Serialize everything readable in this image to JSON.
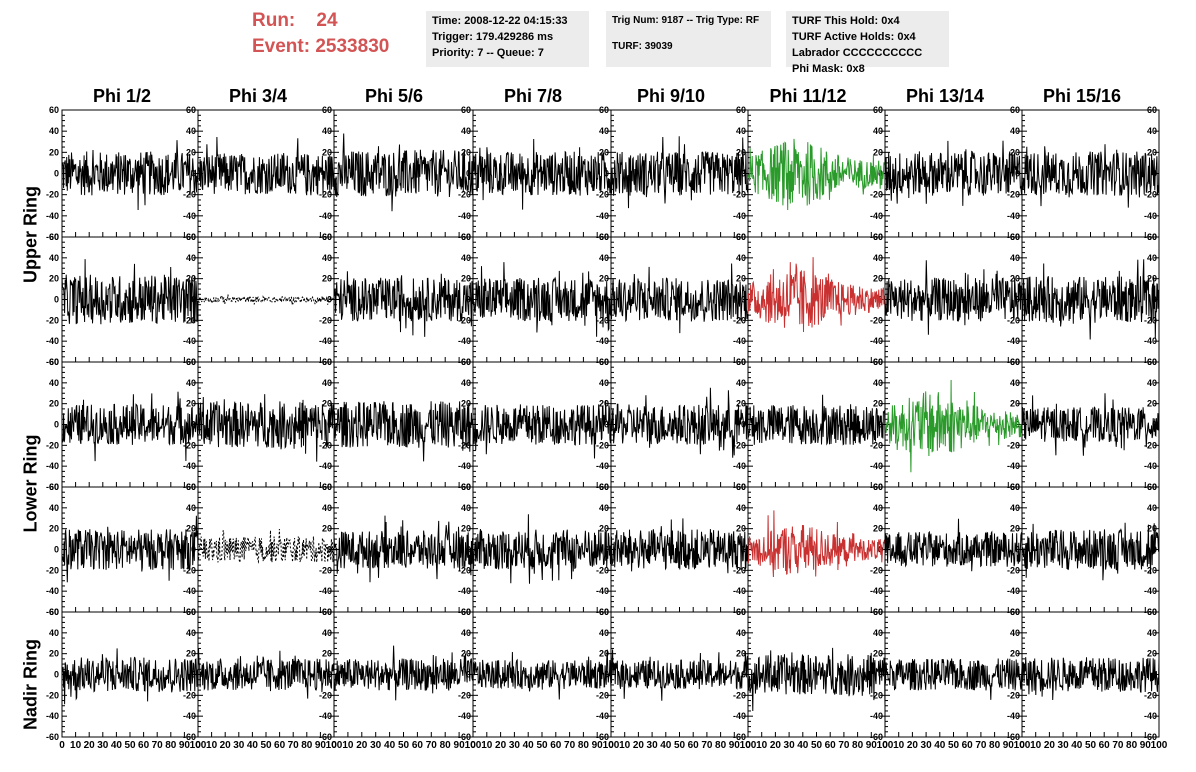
{
  "run": {
    "run_label": "Run:",
    "run_value": "24",
    "event_label": "Event:",
    "event_value": "2533830",
    "color": "#d35454"
  },
  "info_box_1": {
    "line1": "Time: 2008-12-22 04:15:33",
    "line2": "Trigger: 179.429286 ms",
    "line3": "Priority: 7 -- Queue: 7"
  },
  "info_box_2": {
    "line1": "Trig Num: 9187 -- Trig Type: RF",
    "line2": "TURF: 39039"
  },
  "info_box_3": {
    "line1": "TURF This Hold: 0x4",
    "line2": "TURF Active Holds: 0x4",
    "line3": "Labrador CCCCCCCCCC",
    "line4": "Phi Mask: 0x8"
  },
  "chart_data": {
    "type": "line",
    "columns": [
      "Phi 1/2",
      "Phi 3/4",
      "Phi 5/6",
      "Phi 7/8",
      "Phi 9/10",
      "Phi 11/12",
      "Phi 13/14",
      "Phi 15/16"
    ],
    "row_labels": [
      "Upper Ring",
      "Lower Ring",
      "Nadir Ring"
    ],
    "rings_rows": [
      [
        0,
        1
      ],
      [
        2,
        3
      ],
      [
        4
      ]
    ],
    "xlim": [
      0,
      100
    ],
    "ylim": [
      -60,
      60
    ],
    "x_ticks": [
      "0",
      "10",
      "20",
      "30",
      "40",
      "50",
      "60",
      "70",
      "80",
      "90",
      "100"
    ],
    "y_ticks": [
      "60",
      "40",
      "20",
      "0",
      "-20",
      "-40",
      "-60"
    ],
    "panel_color": [
      [
        "#000000",
        "#000000",
        "#000000",
        "#000000",
        "#000000",
        "#2a9a2a",
        "#000000",
        "#000000"
      ],
      [
        "#000000",
        "#000000",
        "#000000",
        "#000000",
        "#000000",
        "#c93030",
        "#000000",
        "#000000"
      ],
      [
        "#000000",
        "#000000",
        "#000000",
        "#000000",
        "#000000",
        "#000000",
        "#2a9a2a",
        "#000000"
      ],
      [
        "#000000",
        "#000000",
        "#000000",
        "#000000",
        "#000000",
        "#c93030",
        "#000000",
        "#000000"
      ],
      [
        "#000000",
        "#000000",
        "#000000",
        "#000000",
        "#000000",
        "#000000",
        "#000000",
        "#000000"
      ]
    ],
    "panel_amplitude": [
      [
        15,
        14,
        16,
        15,
        15,
        18,
        15,
        15
      ],
      [
        17,
        2,
        15,
        15,
        15,
        17,
        15,
        16
      ],
      [
        14,
        16,
        16,
        14,
        14,
        14,
        18,
        12
      ],
      [
        14,
        9,
        13,
        14,
        14,
        14,
        12,
        14
      ],
      [
        12,
        11,
        11,
        10,
        10,
        14,
        11,
        12
      ]
    ],
    "panel_dashed": [
      [
        false,
        false,
        false,
        false,
        false,
        false,
        false,
        false
      ],
      [
        false,
        true,
        false,
        false,
        false,
        false,
        false,
        false
      ],
      [
        false,
        false,
        false,
        false,
        false,
        false,
        false,
        false
      ],
      [
        false,
        true,
        false,
        false,
        false,
        false,
        false,
        false
      ],
      [
        false,
        false,
        false,
        false,
        false,
        false,
        false,
        false
      ]
    ]
  }
}
